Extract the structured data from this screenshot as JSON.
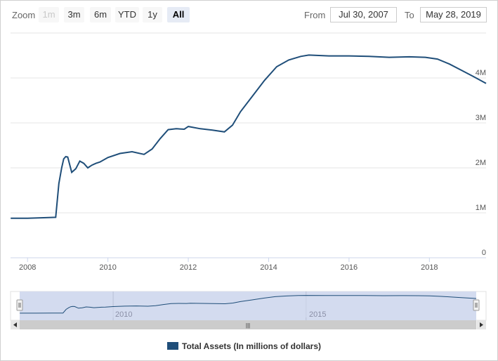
{
  "range_selector": {
    "zoom_label": "Zoom",
    "buttons": [
      "1m",
      "3m",
      "6m",
      "YTD",
      "1y",
      "All"
    ],
    "from_label": "From",
    "from_value": "Jul 30, 2007",
    "to_label": "To",
    "to_value": "May 28, 2019"
  },
  "navigator": {
    "tick_labels": [
      "2010",
      "2015"
    ],
    "scrollbar_grip": "|||"
  },
  "colors": {
    "line": "#1f4e79",
    "grid": "#e6e6e6",
    "navigator_fill": "#d3dbef",
    "button_active_bg": "#e6ebf5"
  },
  "chart_data": {
    "type": "line",
    "title": "",
    "xlabel": "",
    "ylabel": "",
    "ylim": [
      0,
      5000000
    ],
    "y_tick_labels": [
      "0",
      "1M",
      "2M",
      "3M",
      "4M"
    ],
    "x_tick_labels": [
      "2008",
      "2010",
      "2012",
      "2014",
      "2016",
      "2018"
    ],
    "x_range": [
      "Jul 30, 2007",
      "May 28, 2019"
    ],
    "grid": true,
    "legend_position": "bottom-center",
    "series": [
      {
        "name": "Total Assets (In millions of dollars)",
        "x": [
          2007.58,
          2008.0,
          2008.4,
          2008.7,
          2008.78,
          2008.85,
          2008.9,
          2008.95,
          2009.0,
          2009.1,
          2009.2,
          2009.3,
          2009.4,
          2009.5,
          2009.6,
          2009.7,
          2009.8,
          2010.0,
          2010.3,
          2010.6,
          2010.9,
          2011.1,
          2011.3,
          2011.5,
          2011.7,
          2011.9,
          2012.0,
          2012.3,
          2012.6,
          2012.9,
          2013.1,
          2013.3,
          2013.6,
          2013.9,
          2014.2,
          2014.5,
          2014.8,
          2015.0,
          2015.5,
          2016.0,
          2016.5,
          2017.0,
          2017.5,
          2017.9,
          2018.2,
          2018.5,
          2018.8,
          2019.1,
          2019.41
        ],
        "y": [
          880000,
          880000,
          890000,
          900000,
          1650000,
          2000000,
          2200000,
          2250000,
          2240000,
          1900000,
          1980000,
          2150000,
          2100000,
          2000000,
          2060000,
          2100000,
          2130000,
          2230000,
          2320000,
          2360000,
          2300000,
          2420000,
          2650000,
          2850000,
          2870000,
          2860000,
          2920000,
          2870000,
          2840000,
          2800000,
          2950000,
          3250000,
          3600000,
          3950000,
          4250000,
          4400000,
          4480000,
          4510000,
          4490000,
          4490000,
          4480000,
          4460000,
          4470000,
          4460000,
          4420000,
          4310000,
          4170000,
          4030000,
          3880000
        ]
      }
    ]
  }
}
